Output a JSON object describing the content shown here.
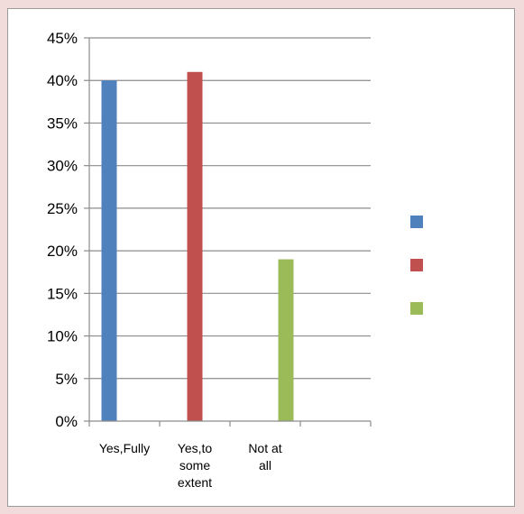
{
  "chart_data": {
    "type": "bar",
    "title": "",
    "xlabel": "",
    "ylabel": "",
    "categories": [
      "Yes,Fully",
      "Yes,to some extent",
      "Not at all"
    ],
    "category_label_lines": [
      [
        "Yes,Fully"
      ],
      [
        "Yes,to",
        "some",
        "extent"
      ],
      [
        "Not at",
        "all"
      ]
    ],
    "values": [
      40,
      41,
      19
    ],
    "colors": [
      "#4f81bd",
      "#c0504d",
      "#9bbb59"
    ],
    "ylim": [
      0,
      45
    ],
    "ytick_step": 5,
    "ytick_labels": [
      "0%",
      "5%",
      "10%",
      "15%",
      "20%",
      "25%",
      "30%",
      "35%",
      "40%",
      "45%"
    ],
    "grid": true,
    "legend_position": "right",
    "legend_entries": [
      "",
      "",
      ""
    ]
  }
}
